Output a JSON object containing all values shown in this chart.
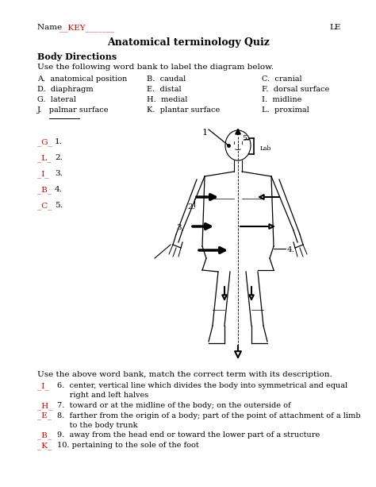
{
  "title": "Anatomical terminology Quiz",
  "name_prefix": "Name  ",
  "name_key": "__KEY_______",
  "le_text": "LE",
  "section_header": "Body Directions",
  "instruction": "Use the following word bank to label the diagram below.",
  "word_bank_col1": [
    "A.  anatomical position",
    "D.  diaphragm",
    "G.  lateral",
    "J.   palmar surface"
  ],
  "word_bank_col2": [
    "B.  caudal",
    "E.  distal",
    "H.  medial",
    "K.  plantar surface"
  ],
  "word_bank_col3": [
    "C.  cranial",
    "F.  dorsal surface",
    "I.  midline",
    "L.  proximal"
  ],
  "answers": [
    "_G_",
    "_L_",
    "_I_",
    "_B_",
    "_C_"
  ],
  "answer_nums": [
    "1.",
    "2.",
    "3.",
    "4.",
    "5."
  ],
  "instruction2": "Use the above word bank, match the correct term with its description.",
  "desc_answers": [
    "_I_",
    "",
    "_H_",
    "_E_",
    "",
    "_B_",
    "_K_"
  ],
  "desc_texts": [
    "6.  center, vertical line which divides the body into symmetrical and equal",
    "     right and left halves",
    "7.  toward or at the midline of the body; on the outerside of",
    "8.  farther from the origin of a body; part of the point of attachment of a limb",
    "     to the body trunk",
    "9.  away from the head end or toward the lower part of a structure",
    "10. pertaining to the sole of the foot"
  ],
  "bg_color": "#ffffff",
  "red_color": "#cc0000",
  "black": "#000000"
}
